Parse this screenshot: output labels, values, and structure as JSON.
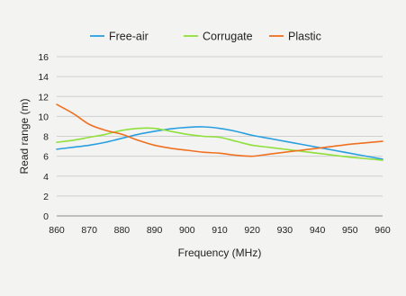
{
  "chart_data": {
    "type": "line",
    "title": "",
    "xlabel": "Frequency (MHz)",
    "ylabel": "Read range (m)",
    "xlim": [
      860,
      960
    ],
    "ylim": [
      0,
      16
    ],
    "x_ticks": [
      860,
      870,
      880,
      890,
      900,
      910,
      920,
      930,
      940,
      950,
      960
    ],
    "y_ticks": [
      0,
      2,
      4,
      6,
      8,
      10,
      12,
      14,
      16
    ],
    "grid": "horizontal",
    "legend": "top",
    "x": [
      860,
      865,
      870,
      875,
      880,
      885,
      890,
      895,
      900,
      905,
      910,
      915,
      920,
      925,
      930,
      935,
      940,
      945,
      950,
      955,
      960
    ],
    "series": [
      {
        "name": "Free-air",
        "color": "#2a9fe0",
        "values": [
          6.7,
          6.9,
          7.1,
          7.4,
          7.8,
          8.2,
          8.5,
          8.75,
          8.9,
          8.95,
          8.8,
          8.5,
          8.1,
          7.8,
          7.5,
          7.2,
          6.9,
          6.6,
          6.3,
          6.0,
          5.7
        ]
      },
      {
        "name": "Corrugate",
        "color": "#8fe03a",
        "values": [
          7.4,
          7.6,
          7.9,
          8.2,
          8.6,
          8.8,
          8.8,
          8.5,
          8.2,
          8.0,
          7.9,
          7.5,
          7.1,
          6.9,
          6.7,
          6.5,
          6.3,
          6.1,
          5.9,
          5.75,
          5.6
        ]
      },
      {
        "name": "Plastic",
        "color": "#f07020",
        "values": [
          11.2,
          10.3,
          9.2,
          8.6,
          8.2,
          7.6,
          7.1,
          6.8,
          6.6,
          6.4,
          6.3,
          6.1,
          6.0,
          6.2,
          6.4,
          6.6,
          6.8,
          7.0,
          7.2,
          7.35,
          7.5
        ]
      }
    ]
  }
}
